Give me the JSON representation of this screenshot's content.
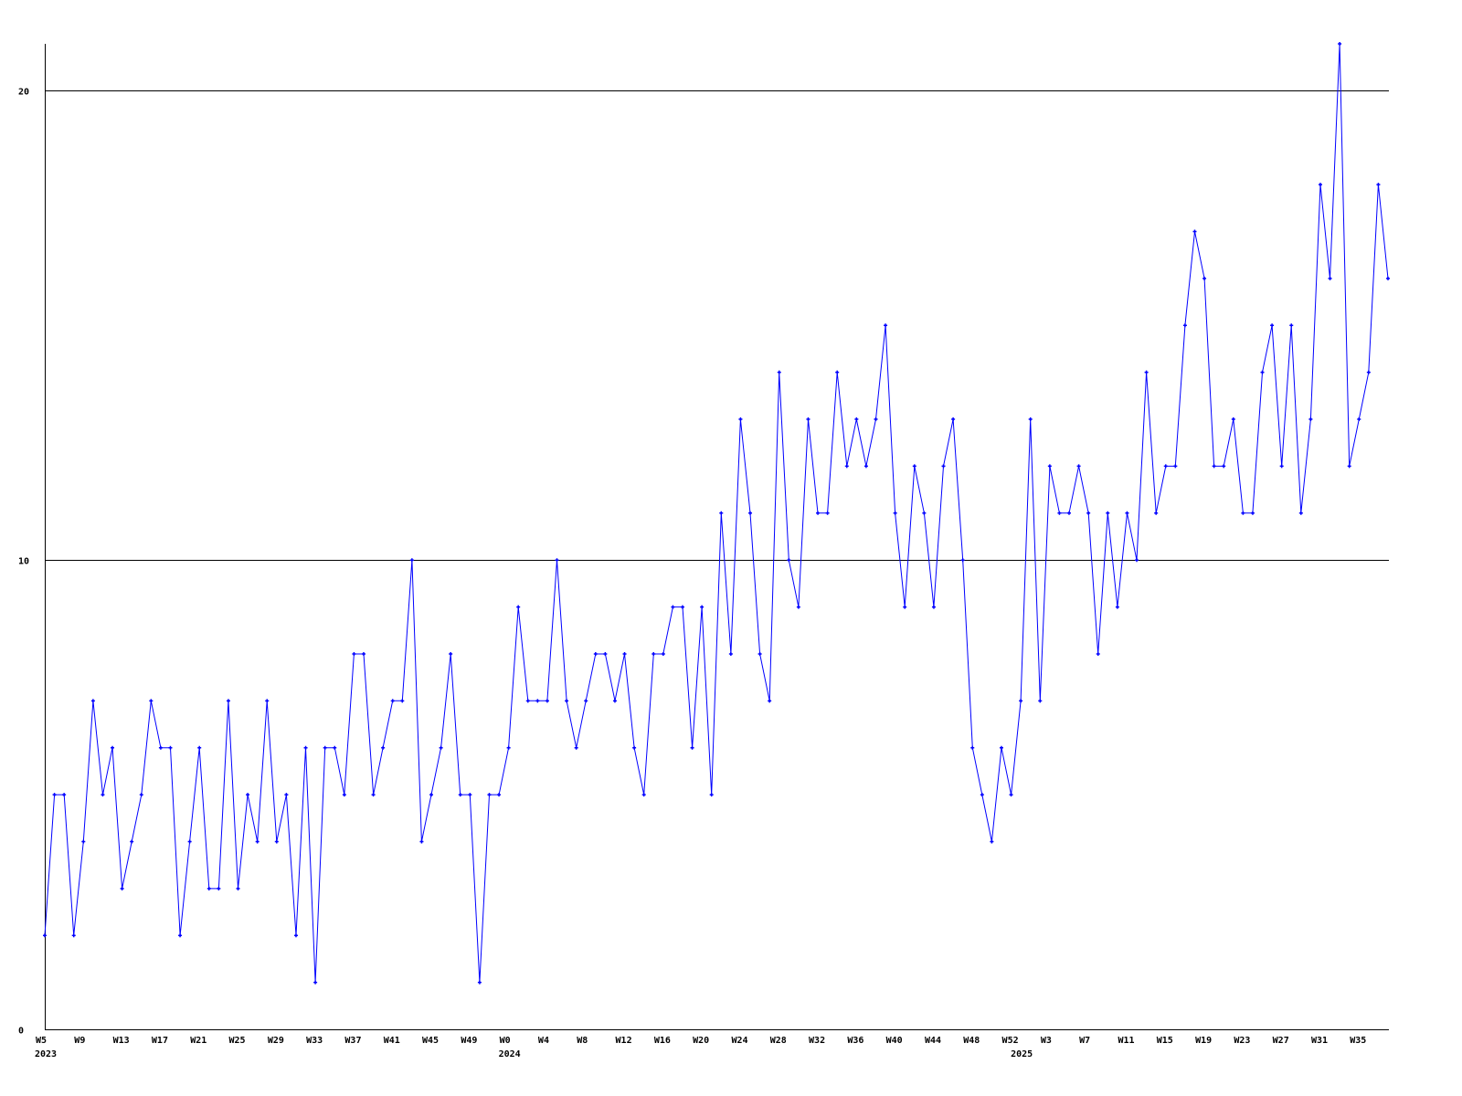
{
  "chart_data": {
    "type": "line",
    "title": "",
    "xlabel": "",
    "ylabel": "",
    "ylim": [
      0,
      21
    ],
    "yticks": [
      0,
      10,
      20
    ],
    "grid": "horizontal at y ticks",
    "legend": "none",
    "line_color": "#0000ff",
    "axis_color": "#000000",
    "x": [
      "2023-W5",
      "2023-W6",
      "2023-W7",
      "2023-W8",
      "2023-W9",
      "2023-W10",
      "2023-W11",
      "2023-W12",
      "2023-W13",
      "2023-W14",
      "2023-W15",
      "2023-W16",
      "2023-W17",
      "2023-W18",
      "2023-W19",
      "2023-W20",
      "2023-W21",
      "2023-W22",
      "2023-W23",
      "2023-W24",
      "2023-W25",
      "2023-W26",
      "2023-W27",
      "2023-W28",
      "2023-W29",
      "2023-W30",
      "2023-W31",
      "2023-W32",
      "2023-W33",
      "2023-W34",
      "2023-W35",
      "2023-W36",
      "2023-W37",
      "2023-W38",
      "2023-W39",
      "2023-W40",
      "2023-W41",
      "2023-W42",
      "2023-W43",
      "2023-W44",
      "2023-W45",
      "2023-W46",
      "2023-W47",
      "2023-W48",
      "2023-W49",
      "2023-W50",
      "2023-W51",
      "2023-W52",
      "2024-W0",
      "2024-W1",
      "2024-W2",
      "2024-W3",
      "2024-W4",
      "2024-W5",
      "2024-W6",
      "2024-W7",
      "2024-W8",
      "2024-W9",
      "2024-W10",
      "2024-W11",
      "2024-W12",
      "2024-W13",
      "2024-W14",
      "2024-W15",
      "2024-W16",
      "2024-W17",
      "2024-W18",
      "2024-W19",
      "2024-W20",
      "2024-W21",
      "2024-W22",
      "2024-W23",
      "2024-W24",
      "2024-W25",
      "2024-W26",
      "2024-W27",
      "2024-W28",
      "2024-W29",
      "2024-W30",
      "2024-W31",
      "2024-W32",
      "2024-W33",
      "2024-W34",
      "2024-W35",
      "2024-W36",
      "2024-W37",
      "2024-W38",
      "2024-W39",
      "2024-W40",
      "2024-W41",
      "2024-W42",
      "2024-W43",
      "2024-W44",
      "2024-W45",
      "2024-W46",
      "2024-W47",
      "2024-W48",
      "2024-W49",
      "2024-W50",
      "2024-W51",
      "2024-W52",
      "2025-W0",
      "2025-W1",
      "2025-W2",
      "2025-W3",
      "2025-W4",
      "2025-W5",
      "2025-W6",
      "2025-W7",
      "2025-W8",
      "2025-W9",
      "2025-W10",
      "2025-W11",
      "2025-W12",
      "2025-W13",
      "2025-W14",
      "2025-W15",
      "2025-W16",
      "2025-W17",
      "2025-W18",
      "2025-W19",
      "2025-W20",
      "2025-W21",
      "2025-W22",
      "2025-W23",
      "2025-W24",
      "2025-W25",
      "2025-W26",
      "2025-W27",
      "2025-W28",
      "2025-W29",
      "2025-W30",
      "2025-W31",
      "2025-W32",
      "2025-W33",
      "2025-W34",
      "2025-W35",
      "2025-W36",
      "2025-W37",
      "2025-W38"
    ],
    "values": [
      2,
      5,
      5,
      2,
      4,
      7,
      5,
      6,
      3,
      4,
      5,
      7,
      6,
      6,
      2,
      4,
      6,
      3,
      3,
      7,
      3,
      5,
      4,
      7,
      4,
      5,
      2,
      6,
      1,
      6,
      6,
      5,
      8,
      8,
      5,
      6,
      7,
      7,
      10,
      4,
      5,
      6,
      8,
      5,
      5,
      1,
      5,
      5,
      6,
      9,
      7,
      7,
      7,
      10,
      7,
      6,
      7,
      8,
      8,
      7,
      8,
      6,
      5,
      8,
      8,
      9,
      9,
      6,
      9,
      5,
      11,
      8,
      13,
      11,
      8,
      7,
      14,
      10,
      9,
      13,
      11,
      11,
      14,
      12,
      13,
      12,
      13,
      15,
      11,
      9,
      12,
      11,
      9,
      12,
      13,
      10,
      6,
      5,
      4,
      6,
      5,
      7,
      13,
      7,
      12,
      11,
      11,
      12,
      11,
      8,
      11,
      9,
      11,
      10,
      14,
      11,
      12,
      12,
      15,
      17,
      16,
      12,
      12,
      13,
      11,
      11,
      14,
      15,
      12,
      15,
      11,
      13,
      18,
      16,
      21,
      12,
      13,
      14,
      18,
      16
    ],
    "xtick_labels": [
      "W5",
      "W9",
      "W13",
      "W17",
      "W21",
      "W25",
      "W29",
      "W33",
      "W37",
      "W41",
      "W45",
      "W49",
      "W0",
      "W4",
      "W8",
      "W12",
      "W16",
      "W20",
      "W24",
      "W28",
      "W32",
      "W36",
      "W40",
      "W44",
      "W48",
      "W52",
      "W3",
      "W7",
      "W11",
      "W15",
      "W19",
      "W23",
      "W27",
      "W31",
      "W35"
    ],
    "xtick_index": [
      0,
      4,
      8,
      12,
      16,
      20,
      24,
      28,
      32,
      36,
      40,
      44,
      48,
      52,
      56,
      60,
      64,
      68,
      72,
      76,
      80,
      84,
      88,
      92,
      96,
      100,
      104,
      108,
      112,
      116,
      120,
      124,
      128,
      132,
      136
    ],
    "year_labels": [
      "2023",
      "2024",
      "2025"
    ],
    "year_index": [
      0,
      48,
      101
    ],
    "ytick_labels": [
      "0",
      "10",
      "20"
    ]
  }
}
